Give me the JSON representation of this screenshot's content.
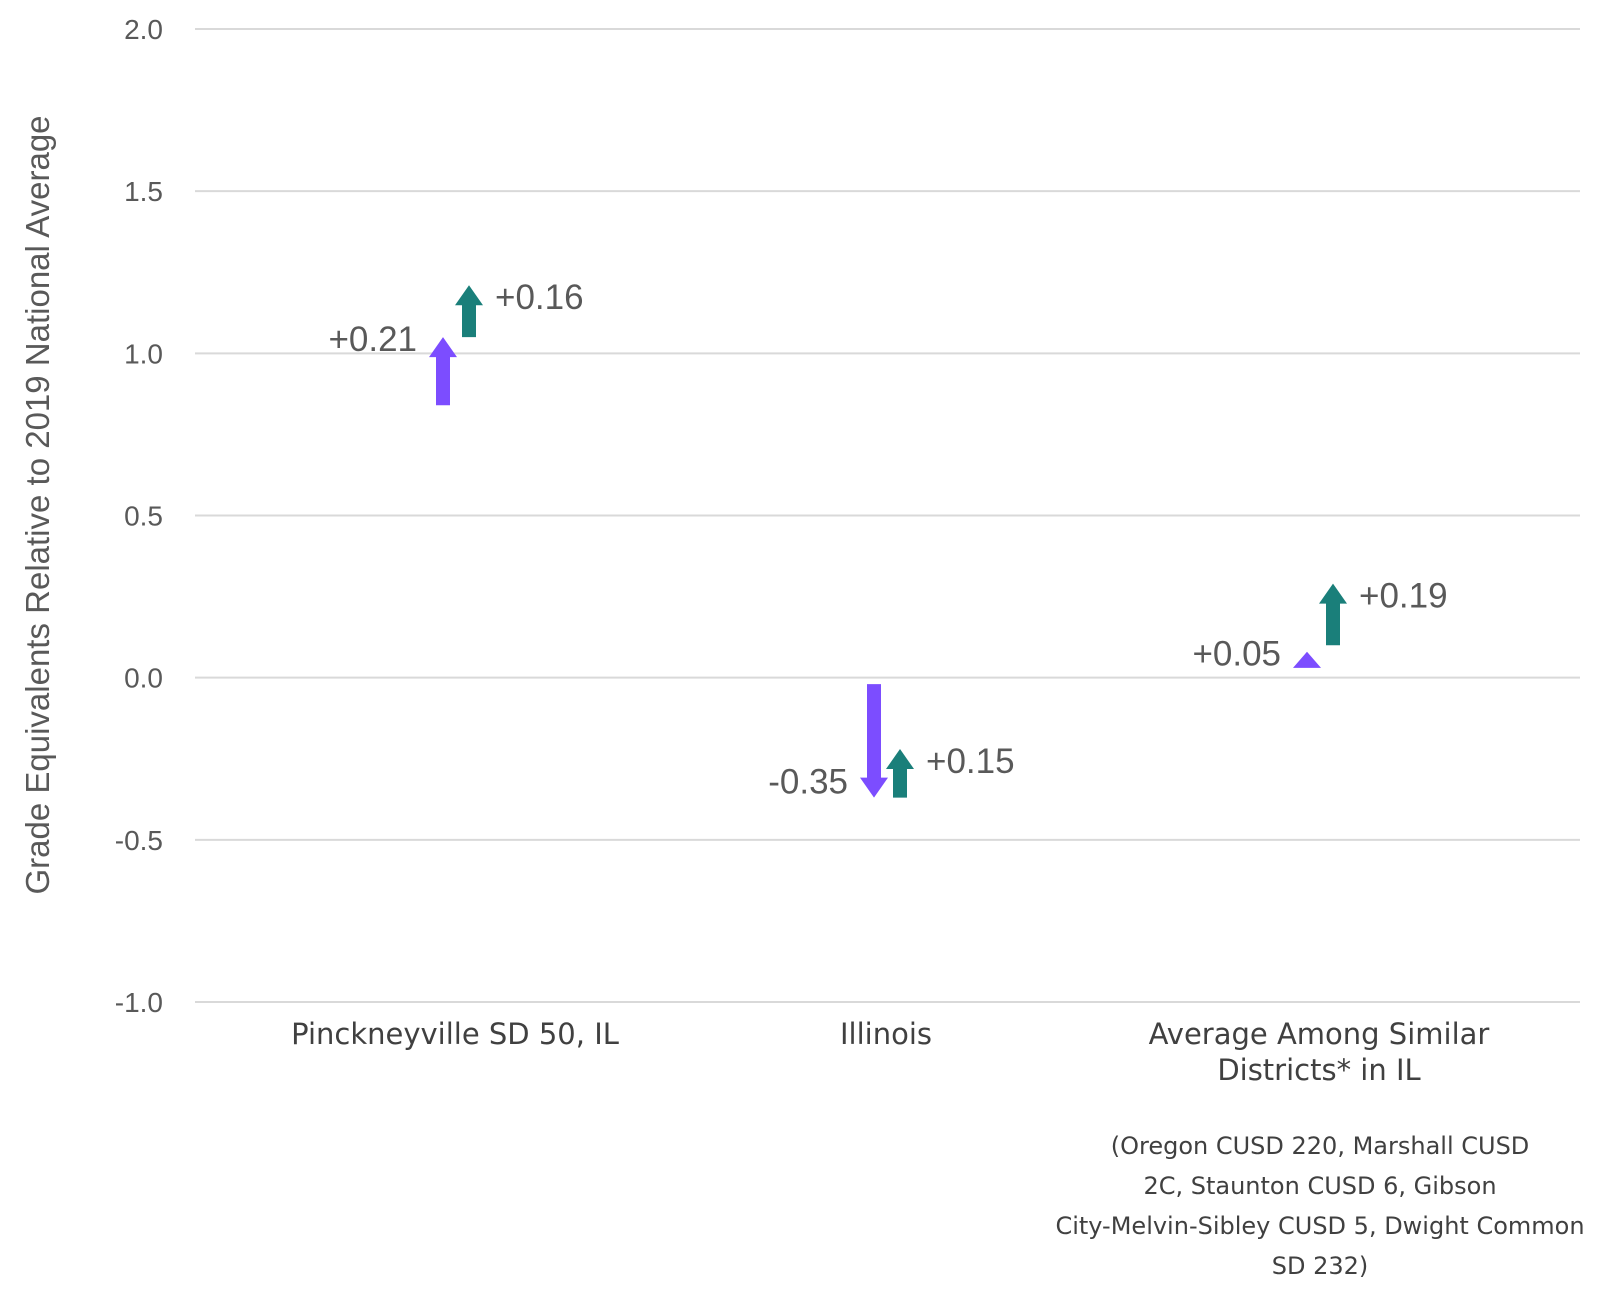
{
  "chart_data": {
    "type": "arrow",
    "ylabel": "Grade Equivalents Relative to 2019 National Average",
    "ylim": [
      -1.0,
      2.0
    ],
    "yticks": [
      2.0,
      1.5,
      1.0,
      0.5,
      0.0,
      -0.5,
      -1.0
    ],
    "ytick_labels": [
      "2.0",
      "1.5",
      "1.0",
      "0.5",
      "0.0",
      "-0.5",
      "-1.0"
    ],
    "grid": true,
    "categories": [
      {
        "name": "Pinckneyville SD 50, IL",
        "lines": [
          "Pinckneyville SD 50, IL"
        ]
      },
      {
        "name": "Illinois",
        "lines": [
          "Illinois"
        ]
      },
      {
        "name": "Average Among Similar Districts* in IL",
        "lines": [
          "Average Among Similar",
          "Districts* in IL"
        ]
      }
    ],
    "footnote_lines": [
      "(Oregon CUSD 220, Marshall CUSD",
      "2C, Staunton CUSD 6, Gibson",
      "City-Melvin-Sibley CUSD 5, Dwight Common",
      "SD 232)"
    ],
    "colors": {
      "first": "#7c4dff",
      "second": "#1a7f7a"
    },
    "series": [
      {
        "color": "#7c4dff",
        "arrows": [
          {
            "from": 0.84,
            "to": 1.05,
            "label": "+0.21"
          },
          {
            "from": -0.02,
            "to": -0.37,
            "label": "-0.35"
          },
          {
            "from": 0.03,
            "to": 0.08,
            "label": "+0.05"
          }
        ]
      },
      {
        "color": "#1a7f7a",
        "arrows": [
          {
            "from": 1.05,
            "to": 1.21,
            "label": "+0.16"
          },
          {
            "from": -0.37,
            "to": -0.22,
            "label": "+0.15"
          },
          {
            "from": 0.1,
            "to": 0.29,
            "label": "+0.19"
          }
        ]
      }
    ]
  }
}
